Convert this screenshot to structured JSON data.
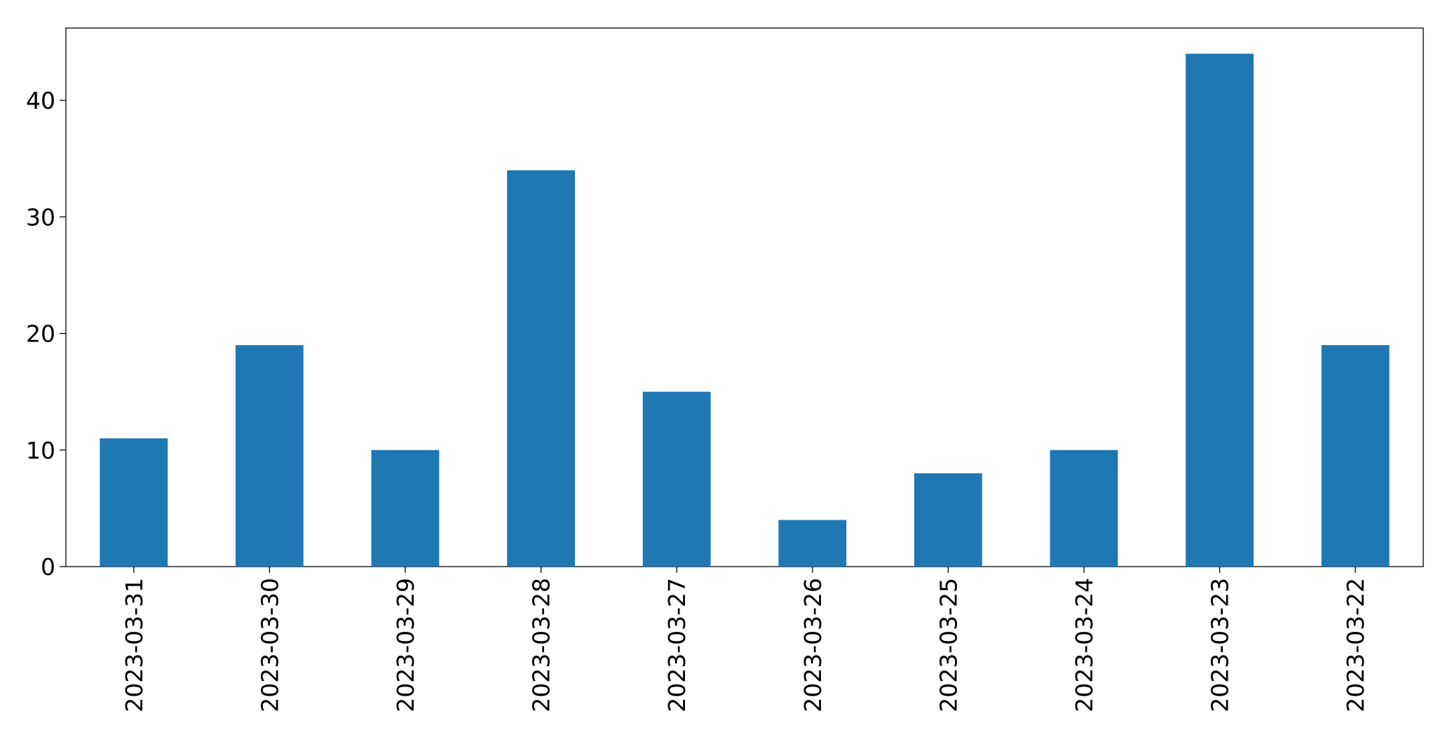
{
  "chart_data": {
    "type": "bar",
    "categories": [
      "2023-03-31",
      "2023-03-30",
      "2023-03-29",
      "2023-03-28",
      "2023-03-27",
      "2023-03-26",
      "2023-03-25",
      "2023-03-24",
      "2023-03-23",
      "2023-03-22"
    ],
    "values": [
      11,
      19,
      10,
      34,
      15,
      4,
      8,
      10,
      44,
      19
    ],
    "color": "#1f77b4",
    "ylim": [
      0,
      46.2
    ],
    "yticks": [
      0,
      10,
      20,
      30,
      40
    ],
    "grid": false
  }
}
